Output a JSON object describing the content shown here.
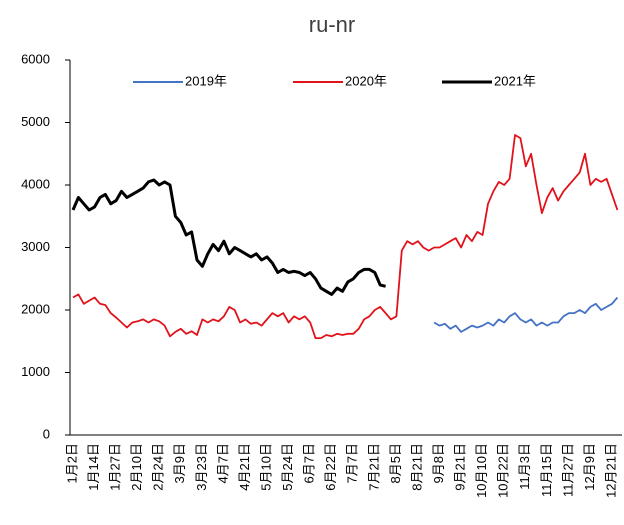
{
  "chart_data": {
    "type": "line",
    "title": "ru-nr",
    "categories": [
      "1月2日",
      null,
      null,
      null,
      "1月14日",
      null,
      null,
      null,
      "1月27日",
      null,
      null,
      null,
      "2月10日",
      null,
      null,
      null,
      "2月24日",
      null,
      null,
      null,
      "3月9日",
      null,
      null,
      null,
      "3月23日",
      null,
      null,
      null,
      "4月7日",
      null,
      null,
      null,
      "4月21日",
      null,
      null,
      null,
      "5月10日",
      null,
      null,
      null,
      "5月24日",
      null,
      null,
      null,
      "6月7日",
      null,
      null,
      null,
      "6月22日",
      null,
      null,
      null,
      "7月7日",
      null,
      null,
      null,
      "7月21日",
      null,
      null,
      null,
      "8月5日",
      null,
      null,
      null,
      "8月21日",
      null,
      null,
      null,
      "9月8日",
      null,
      null,
      null,
      "9月21日",
      null,
      null,
      null,
      "10月10日",
      null,
      null,
      null,
      "10月22日",
      null,
      null,
      null,
      "11月3日",
      null,
      null,
      null,
      "11月15日",
      null,
      null,
      null,
      "11月27日",
      null,
      null,
      null,
      "12月9日",
      null,
      null,
      null,
      "12月21日",
      null
    ],
    "series": [
      {
        "name": "2019年",
        "color": "#4472c4",
        "values": [
          null,
          null,
          null,
          null,
          null,
          null,
          null,
          null,
          null,
          null,
          null,
          null,
          null,
          null,
          null,
          null,
          null,
          null,
          null,
          null,
          null,
          null,
          null,
          null,
          null,
          null,
          null,
          null,
          null,
          null,
          null,
          null,
          null,
          null,
          null,
          null,
          null,
          null,
          null,
          null,
          null,
          null,
          null,
          null,
          null,
          null,
          null,
          null,
          null,
          null,
          null,
          null,
          null,
          null,
          null,
          null,
          null,
          null,
          null,
          null,
          null,
          null,
          null,
          null,
          null,
          null,
          null,
          1800,
          1750,
          1780,
          1700,
          1750,
          1650,
          1700,
          1750,
          1720,
          1750,
          1800,
          1750,
          1850,
          1800,
          1900,
          1950,
          1850,
          1800,
          1850,
          1750,
          1800,
          1750,
          1800,
          1800,
          1900,
          1950,
          1950,
          2000,
          1950,
          2050,
          2100,
          2000,
          2050,
          2100,
          2200
        ]
      },
      {
        "name": "2020年",
        "color": "#e0131b",
        "values": [
          2200,
          2250,
          2100,
          2150,
          2200,
          2100,
          2080,
          1950,
          1880,
          1800,
          1720,
          1800,
          1820,
          1850,
          1800,
          1850,
          1820,
          1750,
          1580,
          1650,
          1700,
          1620,
          1660,
          1600,
          1850,
          1800,
          1850,
          1820,
          1900,
          2050,
          2000,
          1800,
          1850,
          1780,
          1800,
          1750,
          1850,
          1950,
          1900,
          1950,
          1800,
          1900,
          1850,
          1900,
          1800,
          1550,
          1550,
          1600,
          1580,
          1620,
          1600,
          1620,
          1620,
          1700,
          1850,
          1900,
          2000,
          2050,
          1950,
          1850,
          1900,
          2950,
          3100,
          3050,
          3100,
          3000,
          2950,
          3000,
          3000,
          3050,
          3100,
          3150,
          3000,
          3200,
          3100,
          3250,
          3200,
          3700,
          3900,
          4050,
          4000,
          4100,
          4800,
          4750,
          4300,
          4500,
          4000,
          3550,
          3800,
          3950,
          3750,
          3900,
          4000,
          4100,
          4200,
          4500,
          4000,
          4100,
          4050,
          4100,
          3850,
          3600
        ]
      },
      {
        "name": "2021年",
        "color": "#000000",
        "values": [
          3600,
          3800,
          3700,
          3600,
          3650,
          3800,
          3850,
          3700,
          3750,
          3900,
          3800,
          3850,
          3900,
          3950,
          4050,
          4080,
          4000,
          4050,
          4000,
          3500,
          3400,
          3200,
          3250,
          2800,
          2700,
          2900,
          3050,
          2950,
          3100,
          2900,
          3000,
          2950,
          2900,
          2850,
          2900,
          2800,
          2850,
          2750,
          2600,
          2650,
          2600,
          2620,
          2600,
          2550,
          2600,
          2500,
          2350,
          2300,
          2250,
          2350,
          2300,
          2450,
          2500,
          2600,
          2650,
          2650,
          2600,
          2400,
          2380,
          null,
          null,
          null,
          null,
          null,
          null,
          null,
          null,
          null,
          null,
          null,
          null,
          null,
          null,
          null,
          null,
          null,
          null,
          null,
          null,
          null,
          null,
          null,
          null,
          null,
          null,
          null,
          null,
          null,
          null,
          null,
          null,
          null,
          null,
          null,
          null,
          null,
          null,
          null,
          null,
          null,
          null,
          null
        ]
      }
    ],
    "ylim": [
      0,
      6000
    ],
    "yticks": [
      0,
      1000,
      2000,
      3000,
      4000,
      5000,
      6000
    ],
    "legend": "top"
  }
}
